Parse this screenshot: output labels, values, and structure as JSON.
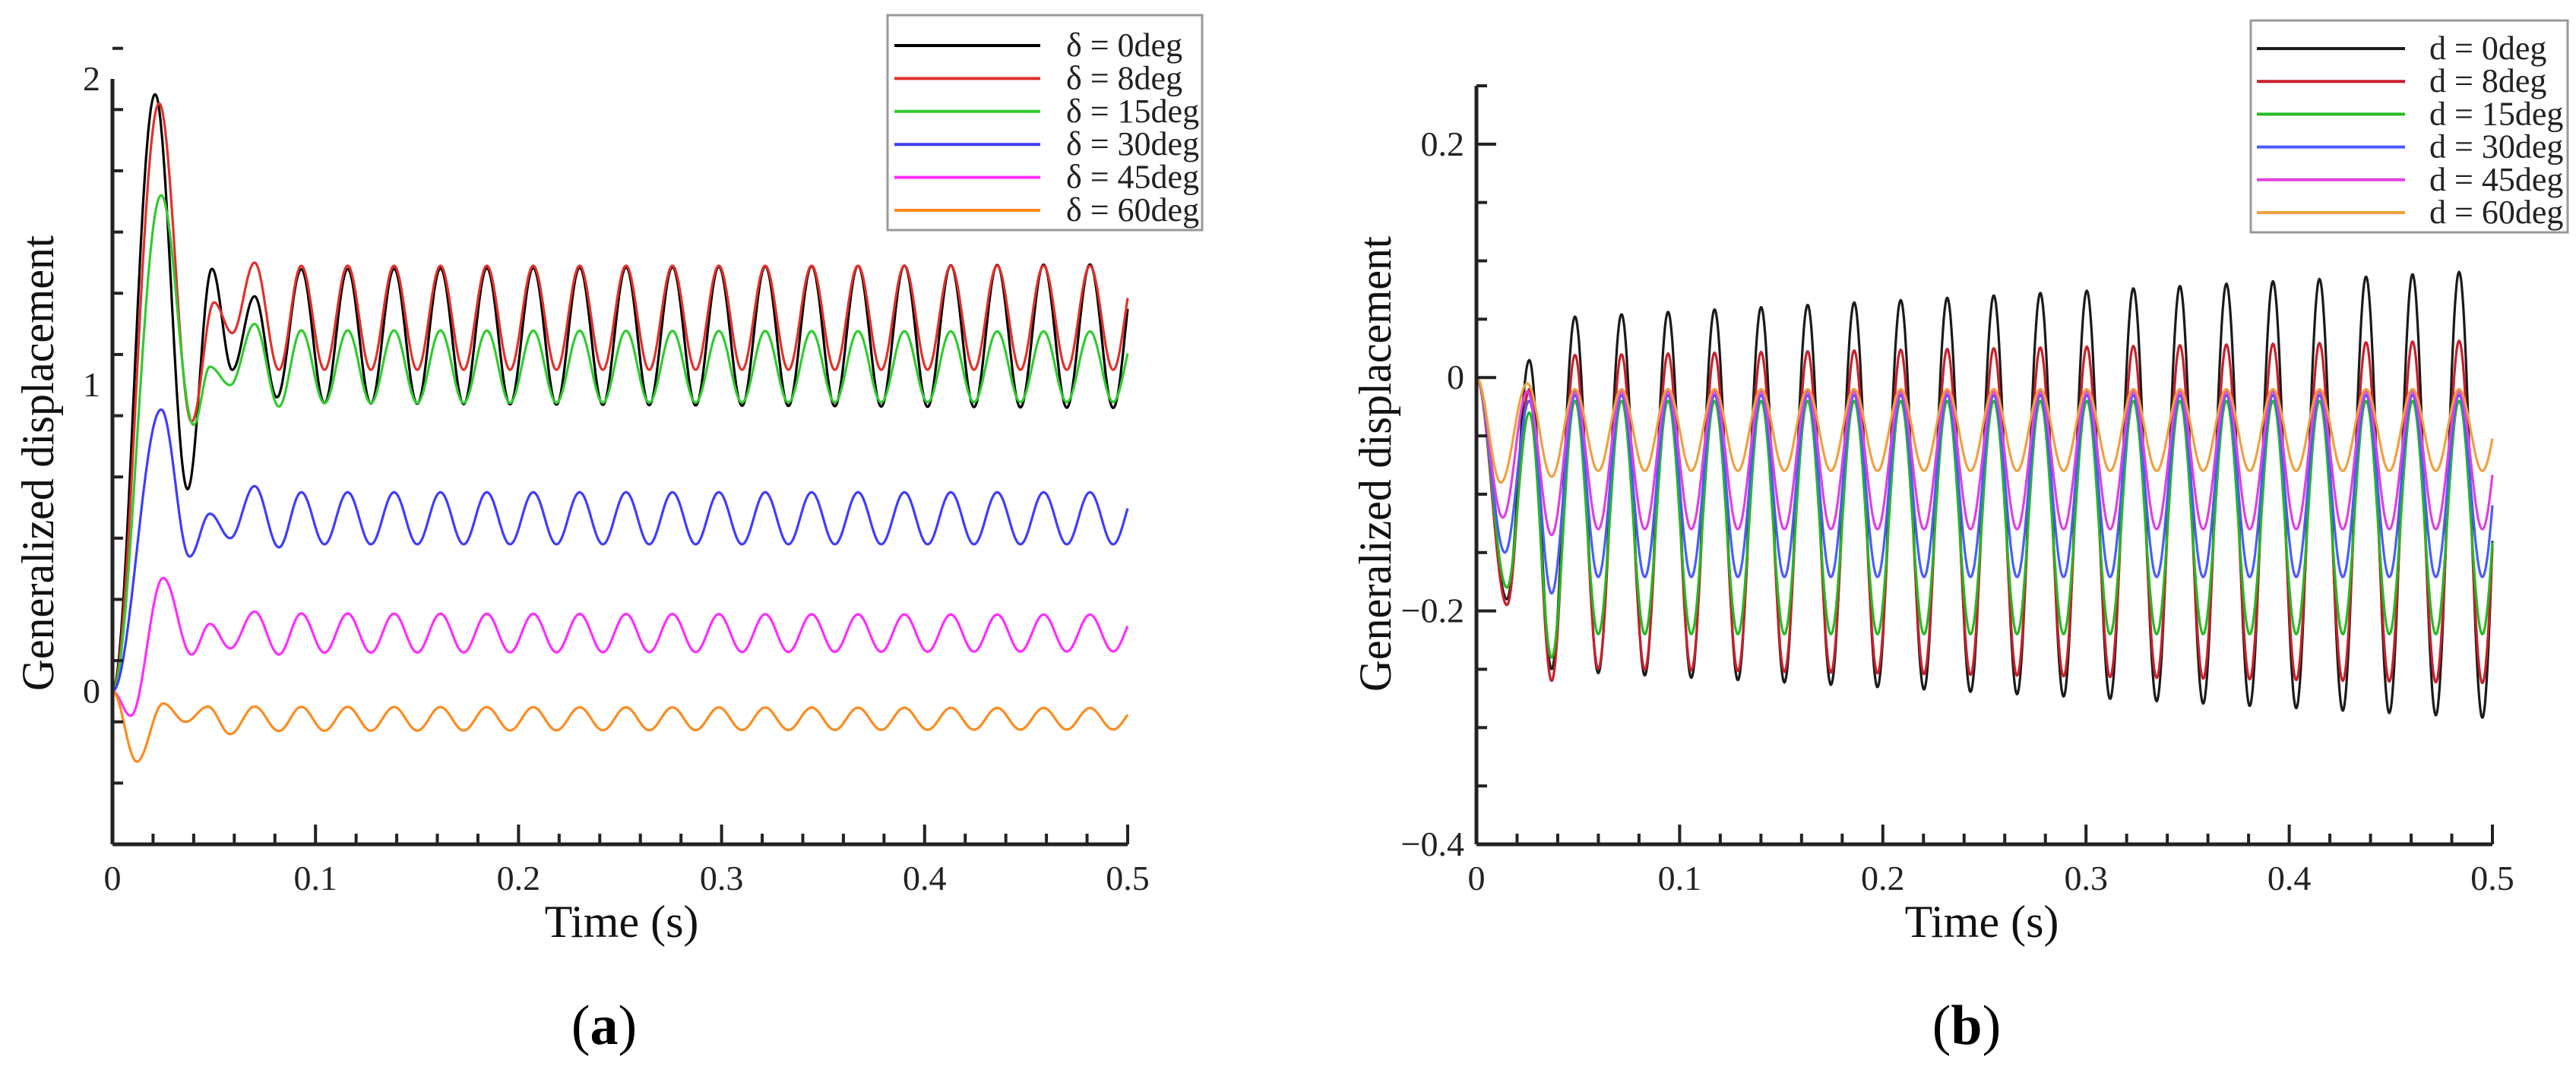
{
  "chart_data": [
    {
      "type": "line",
      "panel_label": "(a)",
      "panel_letter": "a",
      "title": "",
      "xlabel": "Time (s)",
      "ylabel": "Generalized displacement",
      "xlim": [
        0,
        0.5
      ],
      "ylim": [
        -0.5,
        2
      ],
      "x_major_ticks": [
        0,
        0.1,
        0.2,
        0.3,
        0.4,
        0.5
      ],
      "x_tick_labels": [
        "0",
        "0.1",
        "0.2",
        "0.3",
        "0.4",
        "0.5"
      ],
      "x_minor_step": 0.02,
      "y_major_ticks": [
        0,
        1,
        2
      ],
      "y_tick_labels": [
        "0",
        "1",
        "2"
      ],
      "y_minor_step": 0.2,
      "grid": false,
      "legend_position": "top-right",
      "series": [
        {
          "name": "δ = 0deg",
          "color": "#000000",
          "transient_extrema": [
            [
              0,
              0
            ],
            [
              0.021,
              1.95
            ],
            [
              0.037,
              0.66
            ],
            [
              0.049,
              1.38
            ],
            [
              0.059,
              1.05
            ],
            [
              0.07,
              1.29
            ],
            [
              0.081,
              0.96
            ]
          ],
          "steady": {
            "first_peak_t": 0.093,
            "period": 0.02285,
            "mean": 1.16,
            "amplitude_start": 0.215,
            "amplitude_end": 0.235
          }
        },
        {
          "name": "δ = 8deg",
          "color": "#e0312b",
          "transient_extrema": [
            [
              0,
              0
            ],
            [
              0.023,
              1.92
            ],
            [
              0.039,
              0.88
            ],
            [
              0.05,
              1.27
            ],
            [
              0.059,
              1.17
            ],
            [
              0.07,
              1.4
            ],
            [
              0.082,
              1.05
            ]
          ],
          "steady": {
            "first_peak_t": 0.093,
            "period": 0.02285,
            "mean": 1.22,
            "amplitude_start": 0.17,
            "amplitude_end": 0.17
          }
        },
        {
          "name": "δ = 15deg",
          "color": "#2fcc2f",
          "transient_extrema": [
            [
              0,
              0
            ],
            [
              0.024,
              1.62
            ],
            [
              0.04,
              0.87
            ],
            [
              0.048,
              1.06
            ],
            [
              0.058,
              1.0
            ],
            [
              0.07,
              1.2
            ],
            [
              0.082,
              0.93
            ]
          ],
          "steady": {
            "first_peak_t": 0.093,
            "period": 0.02285,
            "mean": 1.06,
            "amplitude_start": 0.12,
            "amplitude_end": 0.115
          }
        },
        {
          "name": "δ = 30deg",
          "color": "#3d3dff",
          "transient_extrema": [
            [
              0,
              0
            ],
            [
              0.024,
              0.92
            ],
            [
              0.038,
              0.44
            ],
            [
              0.048,
              0.58
            ],
            [
              0.058,
              0.5
            ],
            [
              0.07,
              0.67
            ],
            [
              0.082,
              0.47
            ]
          ],
          "steady": {
            "first_peak_t": 0.093,
            "period": 0.02285,
            "mean": 0.565,
            "amplitude_start": 0.085,
            "amplitude_end": 0.085
          }
        },
        {
          "name": "δ = 45deg",
          "color": "#ff2cff",
          "transient_extrema": [
            [
              0,
              0
            ],
            [
              0.009,
              -0.08
            ],
            [
              0.025,
              0.37
            ],
            [
              0.039,
              0.12
            ],
            [
              0.048,
              0.22
            ],
            [
              0.058,
              0.14
            ],
            [
              0.07,
              0.26
            ],
            [
              0.082,
              0.12
            ]
          ],
          "steady": {
            "first_peak_t": 0.093,
            "period": 0.02285,
            "mean": 0.19,
            "amplitude_start": 0.065,
            "amplitude_end": 0.06
          }
        },
        {
          "name": "δ = 60deg",
          "color": "#ff8a1c",
          "transient_extrema": [
            [
              0,
              0
            ],
            [
              0.012,
              -0.23
            ],
            [
              0.025,
              -0.04
            ],
            [
              0.036,
              -0.1
            ],
            [
              0.047,
              -0.05
            ],
            [
              0.058,
              -0.14
            ],
            [
              0.07,
              -0.05
            ],
            [
              0.082,
              -0.13
            ]
          ],
          "steady": {
            "first_peak_t": 0.093,
            "period": 0.02285,
            "mean": -0.09,
            "amplitude_start": 0.04,
            "amplitude_end": 0.035
          }
        }
      ]
    },
    {
      "type": "line",
      "panel_label": "(b)",
      "panel_letter": "b",
      "title": "",
      "xlabel": "Time (s)",
      "ylabel": "Generalized displacement",
      "xlim": [
        0,
        0.5
      ],
      "ylim": [
        -0.4,
        0.25
      ],
      "x_major_ticks": [
        0,
        0.1,
        0.2,
        0.3,
        0.4,
        0.5
      ],
      "x_tick_labels": [
        "0",
        "0.1",
        "0.2",
        "0.3",
        "0.4",
        "0.5"
      ],
      "x_minor_step": 0.02,
      "y_major_ticks": [
        0.2,
        0,
        -0.2,
        -0.4
      ],
      "y_tick_labels": [
        "0.2",
        "0",
        "−0.2",
        "−0.4"
      ],
      "y_minor_step": 0.05,
      "grid": false,
      "legend_position": "top-right",
      "series": [
        {
          "name": "d = 0deg",
          "color": "#1a1a1a",
          "transient_extrema": [
            [
              0,
              0
            ],
            [
              0.015,
              -0.19
            ],
            [
              0.026,
              0.015
            ],
            [
              0.037,
              -0.25
            ]
          ],
          "steady": {
            "first_peak_t": 0.0485,
            "period": 0.0229,
            "mean": -0.1,
            "amplitude_start": 0.148,
            "amplitude_end": 0.192
          }
        },
        {
          "name": "d = 8deg",
          "color": "#c8202a",
          "transient_extrema": [
            [
              0,
              0
            ],
            [
              0.015,
              -0.195
            ],
            [
              0.026,
              -0.01
            ],
            [
              0.037,
              -0.26
            ]
          ],
          "steady": {
            "first_peak_t": 0.0485,
            "period": 0.0229,
            "mean": -0.115,
            "amplitude_start": 0.133,
            "amplitude_end": 0.147
          }
        },
        {
          "name": "d = 15deg",
          "color": "#22bb22",
          "transient_extrema": [
            [
              0,
              0
            ],
            [
              0.015,
              -0.18
            ],
            [
              0.026,
              -0.03
            ],
            [
              0.037,
              -0.24
            ]
          ],
          "steady": {
            "first_peak_t": 0.0485,
            "period": 0.0229,
            "mean": -0.12,
            "amplitude_start": 0.1,
            "amplitude_end": 0.1
          }
        },
        {
          "name": "d = 30deg",
          "color": "#4a5cff",
          "transient_extrema": [
            [
              0,
              0
            ],
            [
              0.014,
              -0.15
            ],
            [
              0.026,
              -0.02
            ],
            [
              0.037,
              -0.185
            ]
          ],
          "steady": {
            "first_peak_t": 0.0485,
            "period": 0.0229,
            "mean": -0.093,
            "amplitude_start": 0.078,
            "amplitude_end": 0.078
          }
        },
        {
          "name": "d = 45deg",
          "color": "#e040e0",
          "transient_extrema": [
            [
              0,
              0
            ],
            [
              0.013,
              -0.12
            ],
            [
              0.025,
              -0.012
            ],
            [
              0.037,
              -0.135
            ]
          ],
          "steady": {
            "first_peak_t": 0.0485,
            "period": 0.0229,
            "mean": -0.071,
            "amplitude_start": 0.059,
            "amplitude_end": 0.059
          }
        },
        {
          "name": "d = 60deg",
          "color": "#f0a040",
          "transient_extrema": [
            [
              0,
              0
            ],
            [
              0.012,
              -0.09
            ],
            [
              0.025,
              -0.005
            ],
            [
              0.037,
              -0.085
            ]
          ],
          "steady": {
            "first_peak_t": 0.0485,
            "period": 0.0229,
            "mean": -0.045,
            "amplitude_start": 0.035,
            "amplitude_end": 0.035
          }
        }
      ]
    }
  ]
}
